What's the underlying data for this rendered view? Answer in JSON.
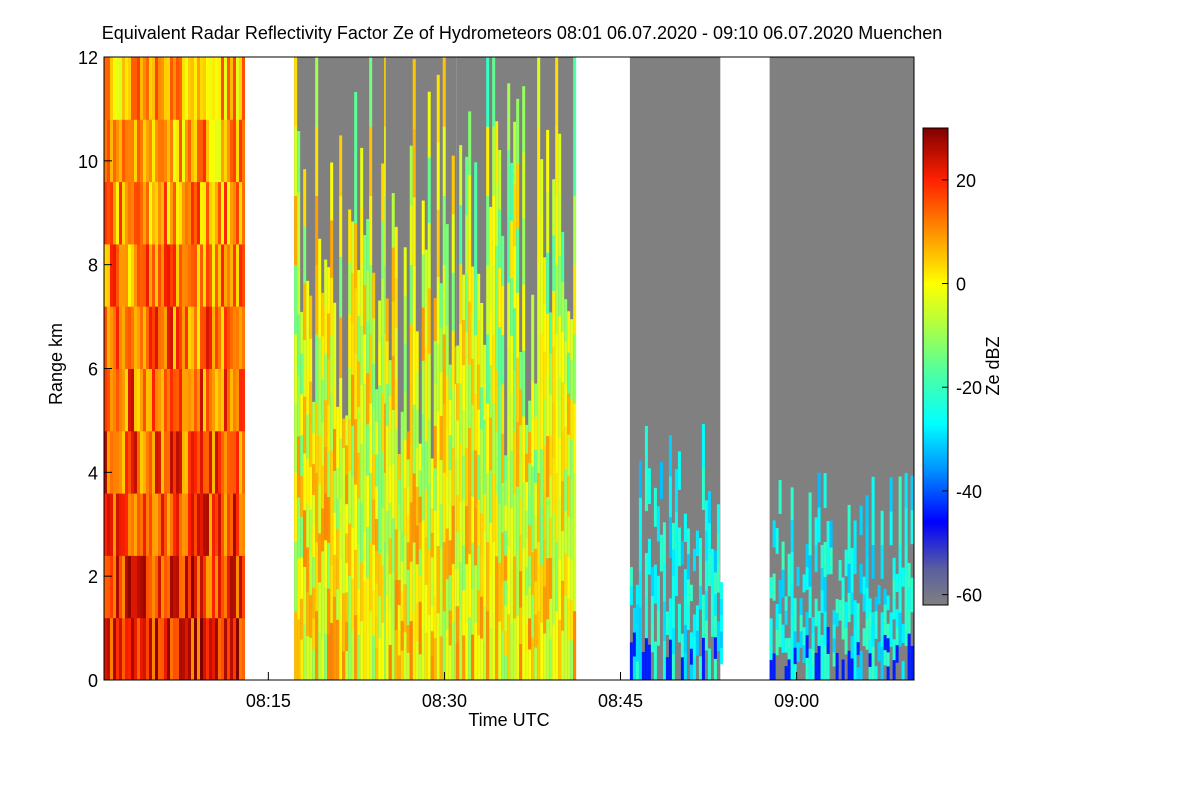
{
  "chart_data": {
    "type": "heatmap",
    "title": "Equivalent Radar Reflectivity Factor Ze of Hydrometeors    08:01 06.07.2020 - 09:10 06.07.2020 Muenchen",
    "xlabel": "Time UTC",
    "ylabel": "Range km",
    "colorbar_label": "Ze dBZ",
    "xlim_minutes_utc": [
      481,
      550
    ],
    "ylim": [
      0,
      12
    ],
    "x_ticks": [
      {
        "minute": 495,
        "label": "08:15"
      },
      {
        "minute": 510,
        "label": "08:30"
      },
      {
        "minute": 525,
        "label": "08:45"
      },
      {
        "minute": 540,
        "label": "09:00"
      }
    ],
    "y_ticks": [
      0,
      2,
      4,
      6,
      8,
      10,
      12
    ],
    "colorbar": {
      "range": [
        -62,
        30
      ],
      "ticks": [
        20,
        0,
        -20,
        -40,
        -60
      ],
      "colors": [
        {
          "value": -62,
          "color": "#808080"
        },
        {
          "value": -55,
          "color": "#5a5fa0"
        },
        {
          "value": -46,
          "color": "#0000ff"
        },
        {
          "value": -36,
          "color": "#0090ff"
        },
        {
          "value": -27,
          "color": "#00ffff"
        },
        {
          "value": -17,
          "color": "#50ffa0"
        },
        {
          "value": -8,
          "color": "#b0ff40"
        },
        {
          "value": 0,
          "color": "#ffff00"
        },
        {
          "value": 10,
          "color": "#ff9000"
        },
        {
          "value": 20,
          "color": "#ff2000"
        },
        {
          "value": 30,
          "color": "#800000"
        }
      ]
    },
    "no_echo_color": "#808080",
    "data_segments": [
      {
        "start_minute": 481.0,
        "end_minute": 492.8,
        "intensity": "strong",
        "echo_top_km": 12,
        "mean_ze_dbz_low": 20,
        "mean_ze_dbz_high": 5
      },
      {
        "start_minute": 497.2,
        "end_minute": 505.0,
        "intensity": "moderate",
        "echo_top_km": 12,
        "mean_ze_dbz_low": 0,
        "mean_ze_dbz_high": -5
      },
      {
        "start_minute": 505.0,
        "end_minute": 511.0,
        "intensity": "moderate",
        "echo_top_km": 12,
        "mean_ze_dbz_low": 0,
        "mean_ze_dbz_high": -5
      },
      {
        "start_minute": 511.0,
        "end_minute": 521.2,
        "intensity": "moderate",
        "echo_top_km": 12,
        "mean_ze_dbz_low": 0,
        "mean_ze_dbz_high": -10
      },
      {
        "start_minute": 525.8,
        "end_minute": 533.5,
        "intensity": "weak",
        "echo_top_km": 5,
        "mean_ze_dbz_low": -25,
        "mean_ze_dbz_high": -30
      },
      {
        "start_minute": 537.7,
        "end_minute": 550.0,
        "intensity": "weak",
        "echo_top_km": 4,
        "mean_ze_dbz_low": -25,
        "mean_ze_dbz_high": -30
      }
    ]
  }
}
